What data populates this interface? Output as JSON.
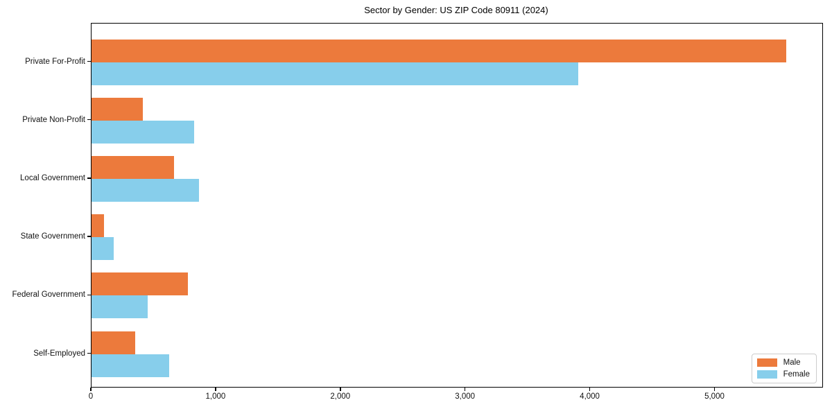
{
  "title": "Sector by Gender: US ZIP Code 80911 (2024)",
  "chart_data": {
    "type": "bar",
    "orientation": "horizontal",
    "title": "Sector by Gender: US ZIP Code 80911 (2024)",
    "xlabel": "",
    "ylabel": "",
    "categories": [
      "Private For-Profit",
      "Private Non-Profit",
      "Local Government",
      "State Government",
      "Federal Government",
      "Self-Employed"
    ],
    "series": [
      {
        "name": "Male",
        "color": "#EC7A3C",
        "values": [
          5570,
          410,
          660,
          100,
          770,
          350
        ]
      },
      {
        "name": "Female",
        "color": "#87CEEB",
        "values": [
          3900,
          820,
          860,
          175,
          450,
          620
        ]
      }
    ],
    "xlim": [
      0,
      5859
    ],
    "xticks": [
      0,
      1000,
      2000,
      3000,
      4000,
      5000
    ],
    "xtick_labels": [
      "0",
      "1,000",
      "2,000",
      "3,000",
      "4,000",
      "5,000"
    ],
    "grid": false,
    "legend_position": "lower right",
    "background_color": "#ffffff",
    "spine_color": "#000000"
  }
}
